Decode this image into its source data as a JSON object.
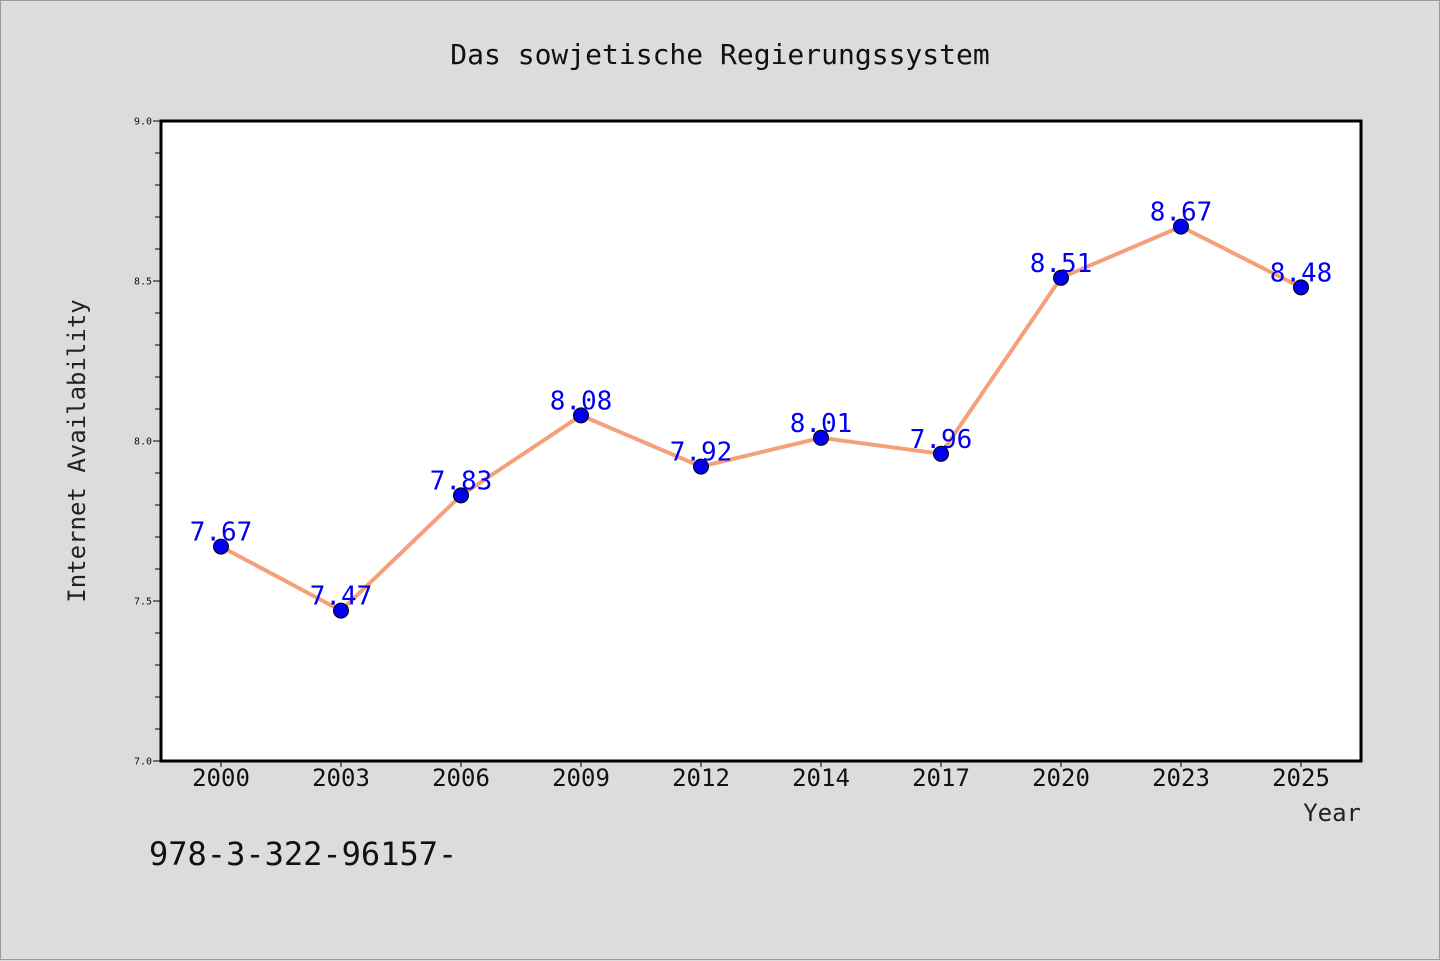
{
  "chart_data": {
    "type": "line",
    "title": "Das sowjetische Regierungssystem",
    "xlabel": "Year",
    "ylabel": "Internet Availability",
    "categories": [
      "2000",
      "2003",
      "2006",
      "2009",
      "2012",
      "2014",
      "2017",
      "2020",
      "2023",
      "2025"
    ],
    "series": [
      {
        "values": [
          7.67,
          7.47,
          7.83,
          8.08,
          7.92,
          8.01,
          7.96,
          8.51,
          8.67,
          8.48
        ],
        "labels": [
          "7.67",
          "7.47",
          "7.83",
          "8.08",
          "7.92",
          "8.01",
          "7.96",
          "8.51",
          "8.67",
          "8.48"
        ],
        "line_color": "#f4a07a",
        "marker_color": "#0000ee",
        "label_color": "#0000ee"
      }
    ],
    "ylim": [
      7.0,
      9.0
    ],
    "yticks": [
      "7.0",
      "7.5",
      "8.0",
      "8.5",
      "9.0"
    ],
    "grid": false,
    "legend": "none"
  },
  "footnote": "978-3-322-96157-",
  "colors": {
    "background": "#dcdcdc",
    "plot_area": "#ffffff",
    "axis": "#000000"
  }
}
